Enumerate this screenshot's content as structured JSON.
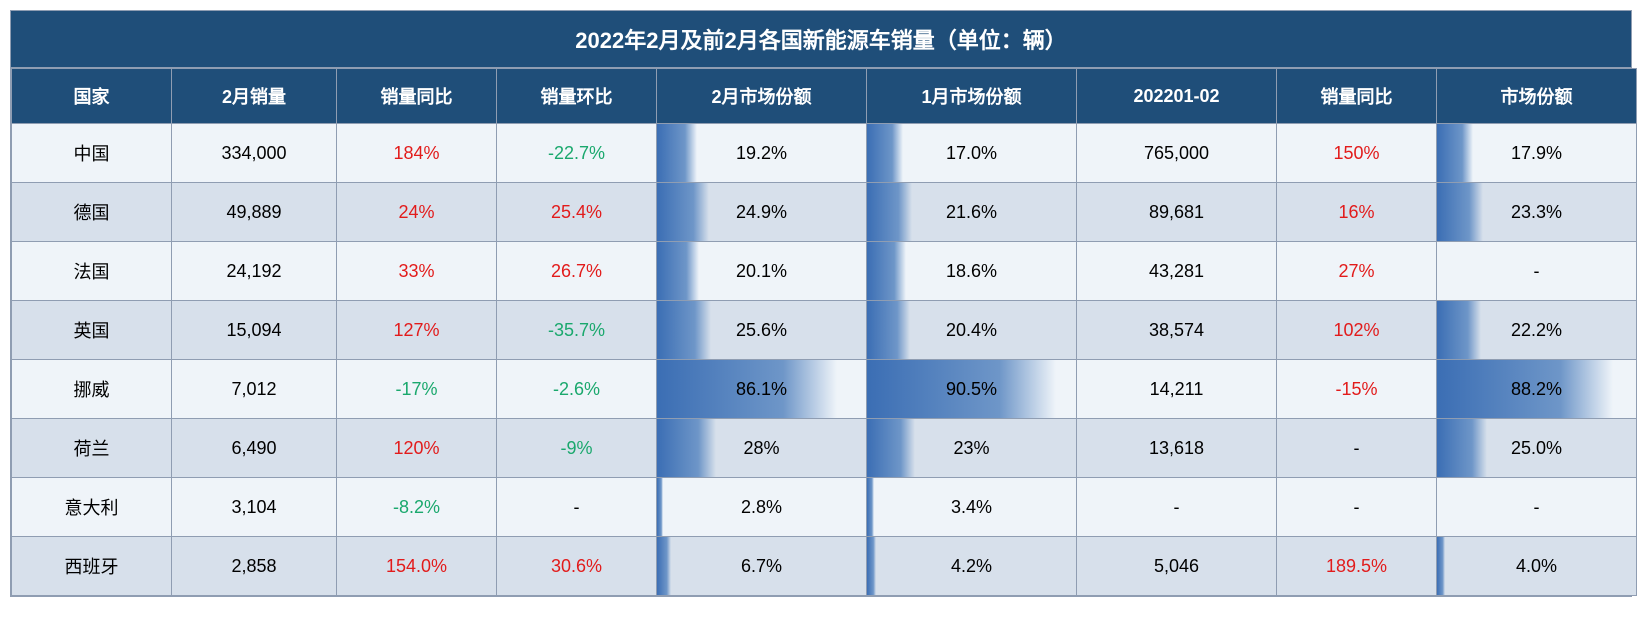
{
  "title": "2022年2月及前2月各国新能源车销量（单位：辆）",
  "columns": [
    "国家",
    "2月销量",
    "销量同比",
    "销量环比",
    "2月市场份额",
    "1月市场份额",
    "202201-02",
    "销量同比",
    "市场份额"
  ],
  "colors": {
    "header_bg": "#1f4e79",
    "header_fg": "#ffffff",
    "row_odd": "#eff4f9",
    "row_even": "#d7e0eb",
    "border": "#8f9db2",
    "positive": "#e21b1b",
    "negative": "#1aa86d",
    "bar_from": "#3b6eb4",
    "bar_mid": "#6e96c8"
  },
  "bar_columns": [
    4,
    5,
    8
  ],
  "rows": [
    {
      "cells": [
        {
          "text": "中国"
        },
        {
          "text": "334,000"
        },
        {
          "text": "184%",
          "color": "pos"
        },
        {
          "text": "-22.7%",
          "color": "neg"
        },
        {
          "text": "19.2%",
          "bar": 19.2
        },
        {
          "text": "17.0%",
          "bar": 17.0
        },
        {
          "text": "765,000"
        },
        {
          "text": "150%",
          "color": "pos"
        },
        {
          "text": "17.9%",
          "bar": 17.9
        }
      ]
    },
    {
      "cells": [
        {
          "text": "德国"
        },
        {
          "text": "49,889"
        },
        {
          "text": "24%",
          "color": "pos"
        },
        {
          "text": "25.4%",
          "color": "pos"
        },
        {
          "text": "24.9%",
          "bar": 24.9
        },
        {
          "text": "21.6%",
          "bar": 21.6
        },
        {
          "text": "89,681"
        },
        {
          "text": "16%",
          "color": "pos"
        },
        {
          "text": "23.3%",
          "bar": 23.3
        }
      ]
    },
    {
      "cells": [
        {
          "text": "法国"
        },
        {
          "text": "24,192"
        },
        {
          "text": "33%",
          "color": "pos"
        },
        {
          "text": "26.7%",
          "color": "pos"
        },
        {
          "text": "20.1%",
          "bar": 20.1
        },
        {
          "text": "18.6%",
          "bar": 18.6
        },
        {
          "text": "43,281"
        },
        {
          "text": "27%",
          "color": "pos"
        },
        {
          "text": "-"
        }
      ]
    },
    {
      "cells": [
        {
          "text": "英国"
        },
        {
          "text": "15,094"
        },
        {
          "text": "127%",
          "color": "pos"
        },
        {
          "text": "-35.7%",
          "color": "neg"
        },
        {
          "text": "25.6%",
          "bar": 25.6
        },
        {
          "text": "20.4%",
          "bar": 20.4
        },
        {
          "text": "38,574"
        },
        {
          "text": "102%",
          "color": "pos"
        },
        {
          "text": "22.2%",
          "bar": 22.2
        }
      ]
    },
    {
      "cells": [
        {
          "text": "挪威"
        },
        {
          "text": "7,012"
        },
        {
          "text": "-17%",
          "color": "neg"
        },
        {
          "text": "-2.6%",
          "color": "neg"
        },
        {
          "text": "86.1%",
          "bar": 86.1
        },
        {
          "text": "90.5%",
          "bar": 90.5
        },
        {
          "text": "14,211"
        },
        {
          "text": "-15%",
          "color": "pos"
        },
        {
          "text": "88.2%",
          "bar": 88.2
        }
      ]
    },
    {
      "cells": [
        {
          "text": "荷兰"
        },
        {
          "text": "6,490"
        },
        {
          "text": "120%",
          "color": "pos"
        },
        {
          "text": "-9%",
          "color": "neg"
        },
        {
          "text": "28%",
          "bar": 28.0
        },
        {
          "text": "23%",
          "bar": 23.0
        },
        {
          "text": "13,618"
        },
        {
          "text": "-"
        },
        {
          "text": "25.0%",
          "bar": 25.0
        }
      ]
    },
    {
      "cells": [
        {
          "text": "意大利"
        },
        {
          "text": "3,104"
        },
        {
          "text": "-8.2%",
          "color": "neg"
        },
        {
          "text": "-"
        },
        {
          "text": "2.8%",
          "bar": 2.8
        },
        {
          "text": "3.4%",
          "bar": 3.4
        },
        {
          "text": "-"
        },
        {
          "text": "-"
        },
        {
          "text": "-"
        }
      ]
    },
    {
      "cells": [
        {
          "text": "西班牙"
        },
        {
          "text": "2,858"
        },
        {
          "text": "154.0%",
          "color": "pos"
        },
        {
          "text": "30.6%",
          "color": "pos"
        },
        {
          "text": "6.7%",
          "bar": 6.7
        },
        {
          "text": "4.2%",
          "bar": 4.2
        },
        {
          "text": "5,046"
        },
        {
          "text": "189.5%",
          "color": "pos"
        },
        {
          "text": "4.0%",
          "bar": 4.0
        }
      ]
    }
  ]
}
